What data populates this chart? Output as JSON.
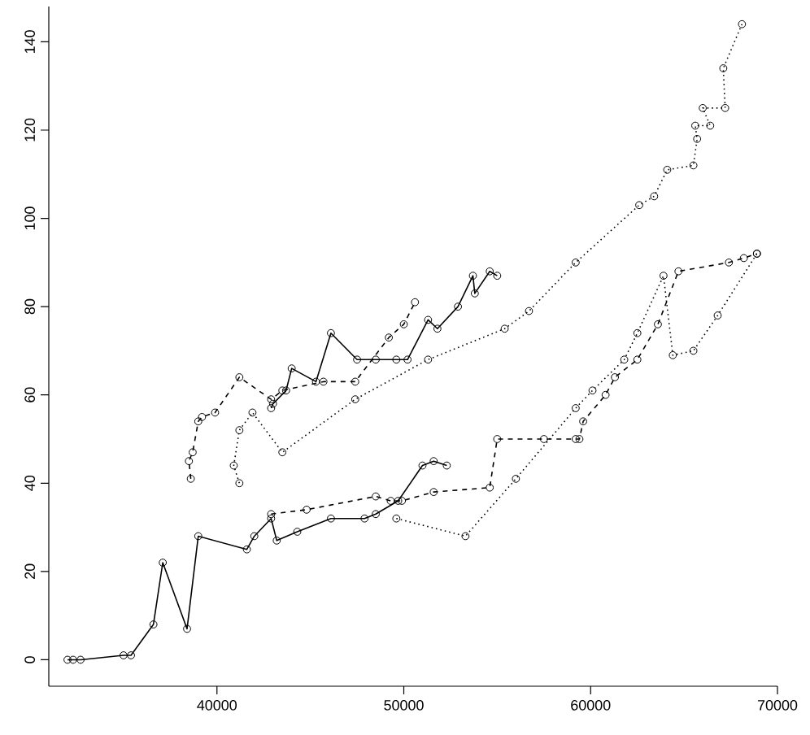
{
  "chart_data": {
    "type": "line",
    "xlim": [
      31000,
      70000
    ],
    "ylim": [
      -6,
      148
    ],
    "xticks": [
      40000,
      50000,
      60000,
      70000
    ],
    "yticks": [
      0,
      20,
      40,
      60,
      80,
      100,
      120,
      140
    ],
    "marker": "circle",
    "series": [
      {
        "color": "#000000",
        "line_style": "solid",
        "x": [
          32000,
          32300,
          32700,
          35000,
          35400,
          36600,
          37100,
          38400,
          39000,
          41600,
          42000,
          42900,
          43200,
          44300,
          46100,
          47900,
          48500,
          49700,
          51000,
          51600,
          52300
        ],
        "values": [
          0,
          0,
          0,
          1,
          1,
          8,
          22,
          7,
          28,
          25,
          28,
          32,
          27,
          29,
          32,
          32,
          33,
          36,
          44,
          45,
          44
        ]
      },
      {
        "color": "#000000",
        "line_style": "dashed",
        "x": [
          42900,
          44800,
          48500,
          49300,
          49900,
          51600,
          54600,
          55000,
          57500,
          59200,
          59400,
          59600,
          60800,
          61300,
          62500,
          63600,
          64700,
          67400,
          68200,
          68900
        ],
        "values": [
          33,
          34,
          37,
          36,
          36,
          38,
          39,
          50,
          50,
          50,
          50,
          54,
          60,
          64,
          68,
          76,
          88,
          90,
          91,
          92
        ]
      },
      {
        "color": "#000000",
        "line_style": "dotted",
        "x": [
          49600,
          53300,
          56000,
          59200,
          60100,
          61800,
          62500,
          63900,
          64400,
          65500,
          66800,
          68900
        ],
        "values": [
          32,
          28,
          41,
          57,
          61,
          68,
          74,
          87,
          69,
          70,
          78,
          92
        ]
      },
      {
        "color": "#000000",
        "line_style": "dotted",
        "x": [
          41200,
          40900,
          41200,
          41900,
          43500,
          47400,
          51300,
          55400,
          56700,
          59200,
          62600,
          63400,
          64100,
          65500,
          65700,
          65600,
          66400,
          66000,
          67200,
          67100,
          68100
        ],
        "values": [
          40,
          44,
          52,
          56,
          47,
          59,
          68,
          75,
          79,
          90,
          103,
          105,
          111,
          112,
          118,
          121,
          121,
          125,
          125,
          134,
          144
        ]
      },
      {
        "color": "#000000",
        "line_style": "dashed",
        "x": [
          38600,
          38500,
          38700,
          39000,
          39200,
          39900,
          41200,
          42900,
          43500,
          45700,
          47400,
          49200,
          50000,
          50600
        ],
        "values": [
          41,
          45,
          47,
          54,
          55,
          56,
          64,
          59,
          61,
          63,
          63,
          73,
          76,
          81
        ]
      },
      {
        "color": "#000000",
        "line_style": "solid",
        "x": [
          42900,
          43000,
          43700,
          44000,
          45300,
          46100,
          47500,
          48500,
          49600,
          50200,
          51300,
          51800,
          52900,
          53700,
          53800,
          54600,
          55000
        ],
        "values": [
          57,
          58,
          61,
          66,
          63,
          74,
          68,
          68,
          68,
          68,
          77,
          75,
          80,
          87,
          83,
          88,
          87
        ]
      }
    ]
  }
}
